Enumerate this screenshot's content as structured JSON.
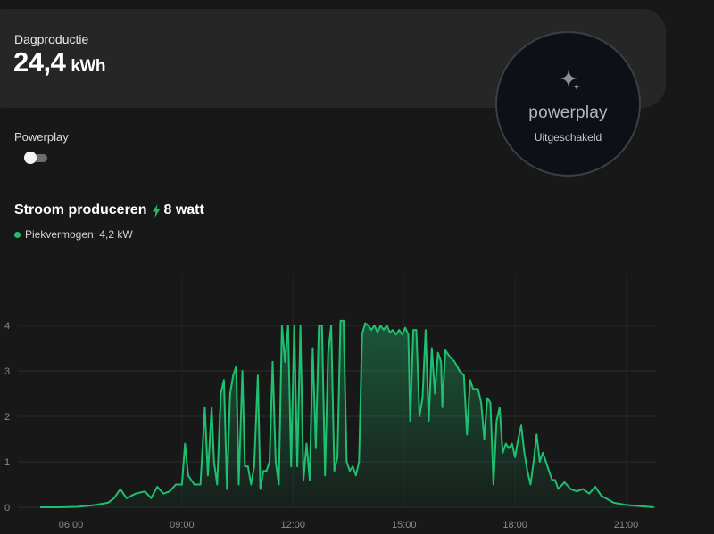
{
  "production_card": {
    "label": "Dagproductie",
    "value": "24,4",
    "unit": "kWh"
  },
  "powerplay_badge": {
    "icon": "sparkle-icon",
    "wordmark": "powerplay",
    "status": "Uitgeschakeld"
  },
  "powerplay_toggle": {
    "label": "Powerplay",
    "enabled": false
  },
  "current_production": {
    "title": "Stroom produceren",
    "icon": "bolt-icon",
    "value": "8 watt",
    "legend": "Piekvermogen: 4,2 kW"
  },
  "colors": {
    "accent": "#1fbf70",
    "background": "#181818",
    "card": "#262626"
  },
  "chart_data": {
    "type": "area",
    "xlabel": "",
    "ylabel": "",
    "x_ticks": [
      "06:00",
      "09:00",
      "12:00",
      "15:00",
      "18:00",
      "21:00"
    ],
    "y_ticks": [
      0,
      1,
      2,
      3,
      4
    ],
    "ylim": [
      0,
      4.3
    ],
    "xlim": [
      "05:00",
      "22:00"
    ],
    "grid": true,
    "series": [
      {
        "color": "#1fbf70",
        "points": [
          [
            "05:10",
            0.0
          ],
          [
            "05:40",
            0.0
          ],
          [
            "06:10",
            0.01
          ],
          [
            "06:40",
            0.05
          ],
          [
            "07:00",
            0.1
          ],
          [
            "07:10",
            0.2
          ],
          [
            "07:20",
            0.4
          ],
          [
            "07:30",
            0.2
          ],
          [
            "07:45",
            0.3
          ],
          [
            "08:00",
            0.35
          ],
          [
            "08:10",
            0.2
          ],
          [
            "08:20",
            0.45
          ],
          [
            "08:30",
            0.3
          ],
          [
            "08:40",
            0.35
          ],
          [
            "08:50",
            0.5
          ],
          [
            "09:00",
            0.5
          ],
          [
            "09:05",
            1.4
          ],
          [
            "09:10",
            0.7
          ],
          [
            "09:20",
            0.5
          ],
          [
            "09:30",
            0.5
          ],
          [
            "09:37",
            2.2
          ],
          [
            "09:42",
            0.7
          ],
          [
            "09:48",
            2.2
          ],
          [
            "09:52",
            1.0
          ],
          [
            "09:57",
            0.5
          ],
          [
            "10:03",
            2.5
          ],
          [
            "10:08",
            2.8
          ],
          [
            "10:13",
            0.4
          ],
          [
            "10:18",
            2.5
          ],
          [
            "10:23",
            2.9
          ],
          [
            "10:28",
            3.1
          ],
          [
            "10:32",
            0.5
          ],
          [
            "10:38",
            3.0
          ],
          [
            "10:42",
            0.9
          ],
          [
            "10:47",
            0.9
          ],
          [
            "10:52",
            0.5
          ],
          [
            "10:57",
            0.9
          ],
          [
            "11:03",
            2.9
          ],
          [
            "11:07",
            0.4
          ],
          [
            "11:12",
            0.8
          ],
          [
            "11:17",
            0.8
          ],
          [
            "11:22",
            1.0
          ],
          [
            "11:27",
            3.2
          ],
          [
            "11:32",
            1.0
          ],
          [
            "11:37",
            0.5
          ],
          [
            "11:42",
            4.0
          ],
          [
            "11:47",
            3.2
          ],
          [
            "11:52",
            4.0
          ],
          [
            "11:57",
            0.9
          ],
          [
            "12:02",
            4.0
          ],
          [
            "12:07",
            0.9
          ],
          [
            "12:12",
            4.0
          ],
          [
            "12:17",
            0.6
          ],
          [
            "12:22",
            1.4
          ],
          [
            "12:27",
            0.6
          ],
          [
            "12:32",
            3.5
          ],
          [
            "12:37",
            1.3
          ],
          [
            "12:42",
            4.0
          ],
          [
            "12:47",
            4.0
          ],
          [
            "12:52",
            0.7
          ],
          [
            "12:57",
            3.4
          ],
          [
            "13:02",
            4.0
          ],
          [
            "13:07",
            0.8
          ],
          [
            "13:12",
            1.1
          ],
          [
            "13:17",
            4.1
          ],
          [
            "13:22",
            4.1
          ],
          [
            "13:27",
            1.0
          ],
          [
            "13:32",
            0.8
          ],
          [
            "13:37",
            0.9
          ],
          [
            "13:42",
            0.7
          ],
          [
            "13:47",
            1.0
          ],
          [
            "13:52",
            3.8
          ],
          [
            "13:57",
            4.05
          ],
          [
            "14:02",
            4.0
          ],
          [
            "14:07",
            3.9
          ],
          [
            "14:12",
            4.0
          ],
          [
            "14:17",
            3.85
          ],
          [
            "14:22",
            4.0
          ],
          [
            "14:27",
            3.9
          ],
          [
            "14:32",
            4.0
          ],
          [
            "14:37",
            3.85
          ],
          [
            "14:42",
            3.9
          ],
          [
            "14:47",
            3.8
          ],
          [
            "14:52",
            3.9
          ],
          [
            "14:57",
            3.8
          ],
          [
            "15:02",
            3.95
          ],
          [
            "15:07",
            3.8
          ],
          [
            "15:10",
            1.9
          ],
          [
            "15:15",
            3.9
          ],
          [
            "15:20",
            3.9
          ],
          [
            "15:25",
            2.0
          ],
          [
            "15:30",
            2.4
          ],
          [
            "15:35",
            3.9
          ],
          [
            "15:40",
            1.9
          ],
          [
            "15:45",
            3.5
          ],
          [
            "15:50",
            2.5
          ],
          [
            "15:55",
            3.4
          ],
          [
            "16:00",
            3.2
          ],
          [
            "16:02",
            2.2
          ],
          [
            "16:07",
            3.45
          ],
          [
            "16:15",
            3.3
          ],
          [
            "16:22",
            3.2
          ],
          [
            "16:30",
            3.0
          ],
          [
            "16:37",
            2.9
          ],
          [
            "16:42",
            1.6
          ],
          [
            "16:47",
            2.8
          ],
          [
            "16:52",
            2.6
          ],
          [
            "17:00",
            2.6
          ],
          [
            "17:05",
            2.3
          ],
          [
            "17:10",
            1.5
          ],
          [
            "17:15",
            2.4
          ],
          [
            "17:20",
            2.3
          ],
          [
            "17:25",
            0.5
          ],
          [
            "17:30",
            1.9
          ],
          [
            "17:35",
            2.2
          ],
          [
            "17:40",
            1.2
          ],
          [
            "17:45",
            1.4
          ],
          [
            "17:50",
            1.3
          ],
          [
            "17:55",
            1.4
          ],
          [
            "18:00",
            1.1
          ],
          [
            "18:05",
            1.5
          ],
          [
            "18:10",
            1.8
          ],
          [
            "18:15",
            1.2
          ],
          [
            "18:20",
            0.8
          ],
          [
            "18:25",
            0.5
          ],
          [
            "18:30",
            1.0
          ],
          [
            "18:35",
            1.6
          ],
          [
            "18:40",
            1.0
          ],
          [
            "18:45",
            1.2
          ],
          [
            "18:50",
            1.0
          ],
          [
            "18:55",
            0.8
          ],
          [
            "19:00",
            0.6
          ],
          [
            "19:05",
            0.6
          ],
          [
            "19:10",
            0.4
          ],
          [
            "19:20",
            0.55
          ],
          [
            "19:30",
            0.4
          ],
          [
            "19:40",
            0.35
          ],
          [
            "19:50",
            0.4
          ],
          [
            "20:00",
            0.3
          ],
          [
            "20:10",
            0.45
          ],
          [
            "20:20",
            0.25
          ],
          [
            "20:40",
            0.1
          ],
          [
            "21:00",
            0.05
          ],
          [
            "21:20",
            0.03
          ],
          [
            "21:45",
            0.0
          ]
        ]
      }
    ]
  }
}
